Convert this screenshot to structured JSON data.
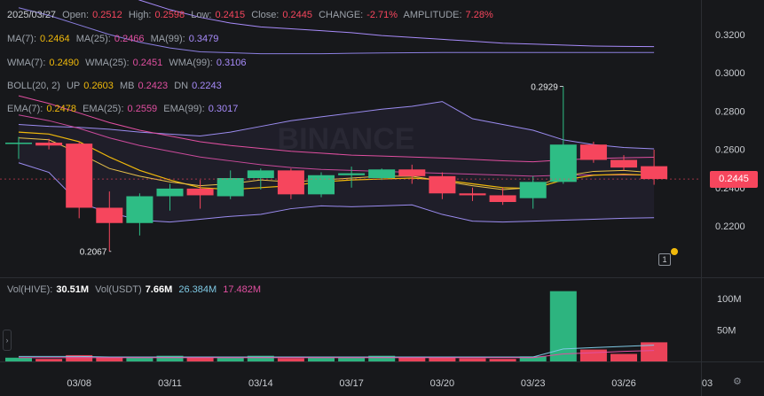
{
  "header": {
    "date": "2025/03/27",
    "open_label": "Open:",
    "open": "0.2512",
    "high_label": "High:",
    "high": "0.2598",
    "low_label": "Low:",
    "low": "0.2415",
    "close_label": "Close:",
    "close": "0.2445",
    "change_label": "CHANGE:",
    "change": "-2.71%",
    "amp_label": "AMPLITUDE:",
    "amp": "7.28%"
  },
  "ma": {
    "ma7_label": "MA(7):",
    "ma7": "0.2464",
    "ma25_label": "MA(25):",
    "ma25": "0.2466",
    "ma99_label": "MA(99):",
    "ma99": "0.3479"
  },
  "wma": {
    "wma7_label": "WMA(7):",
    "wma7": "0.2490",
    "wma25_label": "WMA(25):",
    "wma25": "0.2451",
    "wma99_label": "WMA(99):",
    "wma99": "0.3106"
  },
  "boll": {
    "label": "BOLL(20, 2)",
    "up_label": "UP",
    "up": "0.2603",
    "mb_label": "MB",
    "mb": "0.2423",
    "dn_label": "DN",
    "dn": "0.2243"
  },
  "ema": {
    "ema7_label": "EMA(7):",
    "ema7": "0.2478",
    "ema25_label": "EMA(25):",
    "ema25": "0.2559",
    "ema99_label": "EMA(99):",
    "ema99": "0.3017"
  },
  "volume_header": {
    "hive_label": "Vol(HIVE):",
    "hive": "30.51M",
    "usdt_label": "Vol(USDT)",
    "usdt": "7.66M",
    "ma_a": "26.384M",
    "ma_b": "17.482M"
  },
  "current_price": "0.2445",
  "watermark": "BINANCE",
  "price_axis": [
    "0.3200",
    "0.3000",
    "0.2800",
    "0.2600",
    "0.2400",
    "0.2200"
  ],
  "volume_axis": [
    "100M",
    "50M"
  ],
  "colors": {
    "up": "#2ebd85",
    "down": "#f6465d",
    "yellow": "#f0b90b",
    "purple": "#a78bfa",
    "pink": "#e04fa0",
    "boll": "#9b8cf0"
  },
  "chart_data": {
    "type": "candlestick",
    "x": [
      "03/06",
      "03/07",
      "03/08",
      "03/09",
      "03/10",
      "03/11",
      "03/12",
      "03/13",
      "03/14",
      "03/15",
      "03/16",
      "03/17",
      "03/18",
      "03/19",
      "03/20",
      "03/21",
      "03/22",
      "03/23",
      "03/24",
      "03/25",
      "03/26",
      "03/27"
    ],
    "x_tick_labels": [
      "03/08",
      "03/11",
      "03/14",
      "03/17",
      "03/20",
      "03/23",
      "03/26",
      "03"
    ],
    "ohlc": [
      [
        0.263,
        0.2665,
        0.255,
        0.2635
      ],
      [
        0.2635,
        0.2655,
        0.26,
        0.262
      ],
      [
        0.263,
        0.264,
        0.224,
        0.2295
      ],
      [
        0.2295,
        0.238,
        0.2067,
        0.2215
      ],
      [
        0.2215,
        0.237,
        0.215,
        0.2355
      ],
      [
        0.2355,
        0.242,
        0.228,
        0.2395
      ],
      [
        0.2395,
        0.244,
        0.229,
        0.236
      ],
      [
        0.2355,
        0.249,
        0.234,
        0.245
      ],
      [
        0.245,
        0.25,
        0.239,
        0.249
      ],
      [
        0.249,
        0.25,
        0.234,
        0.2365
      ],
      [
        0.2365,
        0.248,
        0.235,
        0.2465
      ],
      [
        0.2465,
        0.251,
        0.24,
        0.2475
      ],
      [
        0.245,
        0.25,
        0.244,
        0.2495
      ],
      [
        0.2495,
        0.252,
        0.242,
        0.246
      ],
      [
        0.246,
        0.248,
        0.234,
        0.237
      ],
      [
        0.237,
        0.24,
        0.233,
        0.236
      ],
      [
        0.236,
        0.24,
        0.231,
        0.2325
      ],
      [
        0.2345,
        0.246,
        0.229,
        0.243
      ],
      [
        0.243,
        0.2929,
        0.242,
        0.2625
      ],
      [
        0.2625,
        0.264,
        0.253,
        0.2545
      ],
      [
        0.2545,
        0.257,
        0.249,
        0.2505
      ],
      [
        0.2512,
        0.2598,
        0.2415,
        0.2445
      ]
    ],
    "volume_millions": [
      6,
      4,
      10,
      7,
      6,
      9,
      7,
      7,
      9,
      5,
      6,
      6,
      9,
      6,
      6,
      5,
      4,
      8,
      112,
      19,
      12,
      30.51
    ],
    "annotations": [
      {
        "label": "0.2929",
        "value": 0.2929,
        "x": "03/24"
      },
      {
        "label": "0.2067",
        "value": 0.2067,
        "x": "03/09"
      }
    ],
    "ylim": [
      0.2,
      0.33
    ],
    "volume_ylim": [
      0,
      120
    ]
  }
}
